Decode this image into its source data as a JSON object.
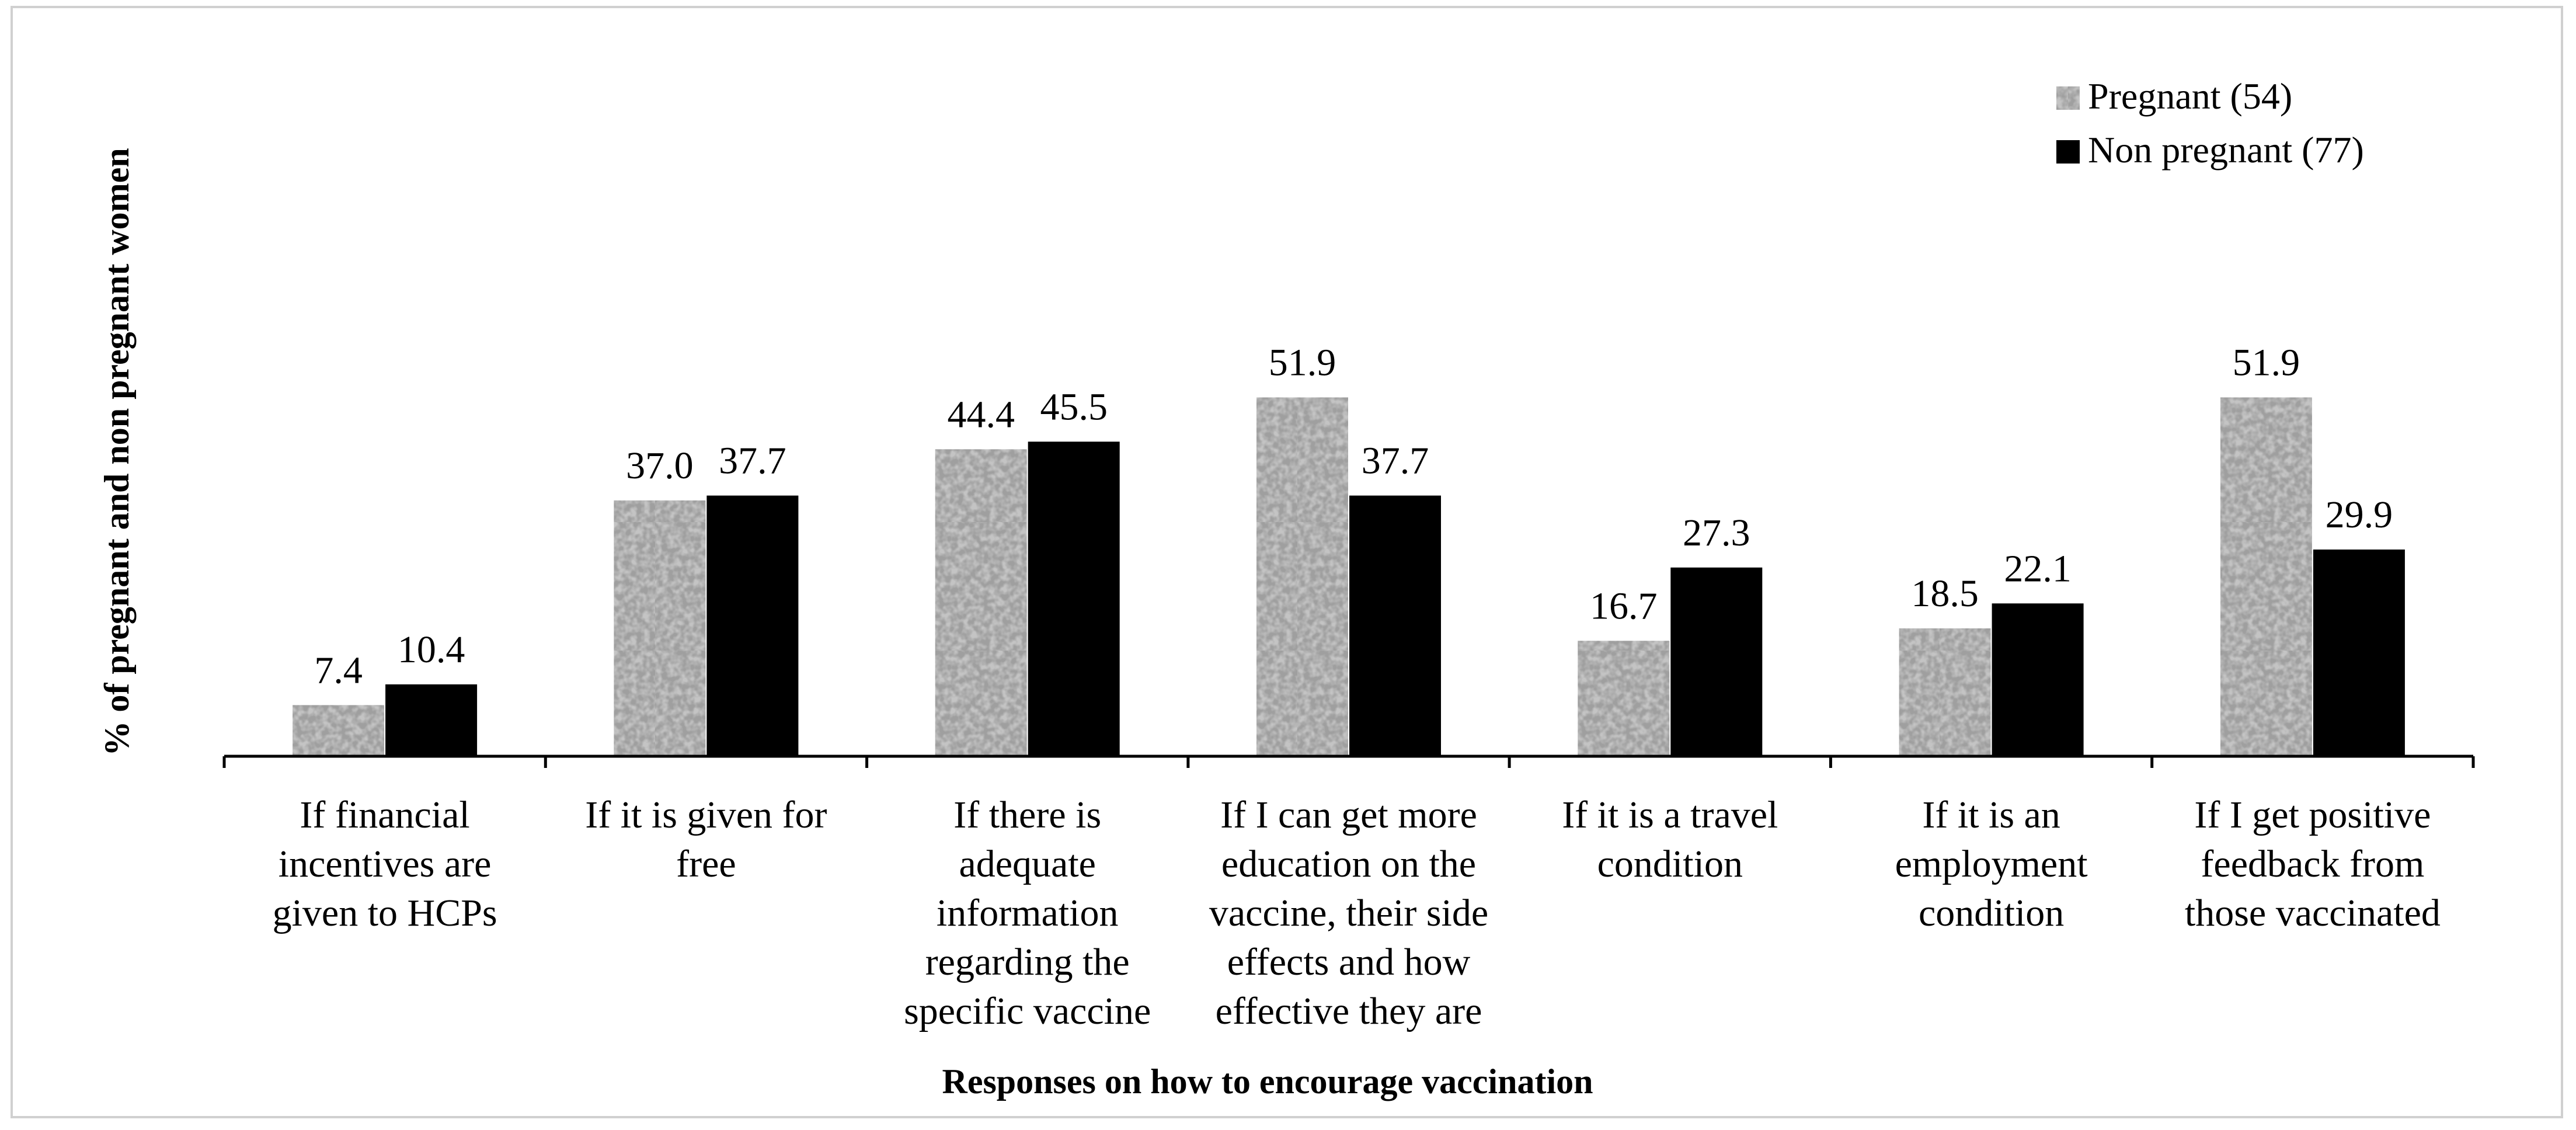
{
  "chart_data": {
    "type": "bar",
    "title": "",
    "xlabel": "Responses on how to encourage vaccination",
    "ylabel": "% of pregnant and non pregnant women",
    "ylim": [
      0,
      60
    ],
    "grid": false,
    "legend_position": "top-right",
    "categories": [
      [
        "If financial",
        "incentives are",
        "given to HCPs"
      ],
      [
        "If it is given for",
        "free"
      ],
      [
        "If there is",
        "adequate",
        "information",
        "regarding the",
        "specific vaccine"
      ],
      [
        "If I can get more",
        "education on the",
        "vaccine, their side",
        "effects and how",
        "effective they are"
      ],
      [
        "If it is a travel",
        "condition"
      ],
      [
        "If it is an",
        "employment",
        "condition"
      ],
      [
        "If I get positive",
        "feedback from",
        "those vaccinated"
      ]
    ],
    "series": [
      {
        "name": "Pregnant (54)",
        "pattern": "speckled-gray",
        "values": [
          7.4,
          37.0,
          44.4,
          51.9,
          16.7,
          18.5,
          51.9
        ],
        "labels": [
          "7.4",
          "37.0",
          "44.4",
          "51.9",
          "16.7",
          "18.5",
          "51.9"
        ]
      },
      {
        "name": "Non pregnant (77)",
        "color": "#000000",
        "values": [
          10.4,
          37.7,
          45.5,
          37.7,
          27.3,
          22.1,
          29.9
        ],
        "labels": [
          "10.4",
          "37.7",
          "45.5",
          "37.7",
          "27.3",
          "22.1",
          "29.9"
        ]
      }
    ]
  }
}
